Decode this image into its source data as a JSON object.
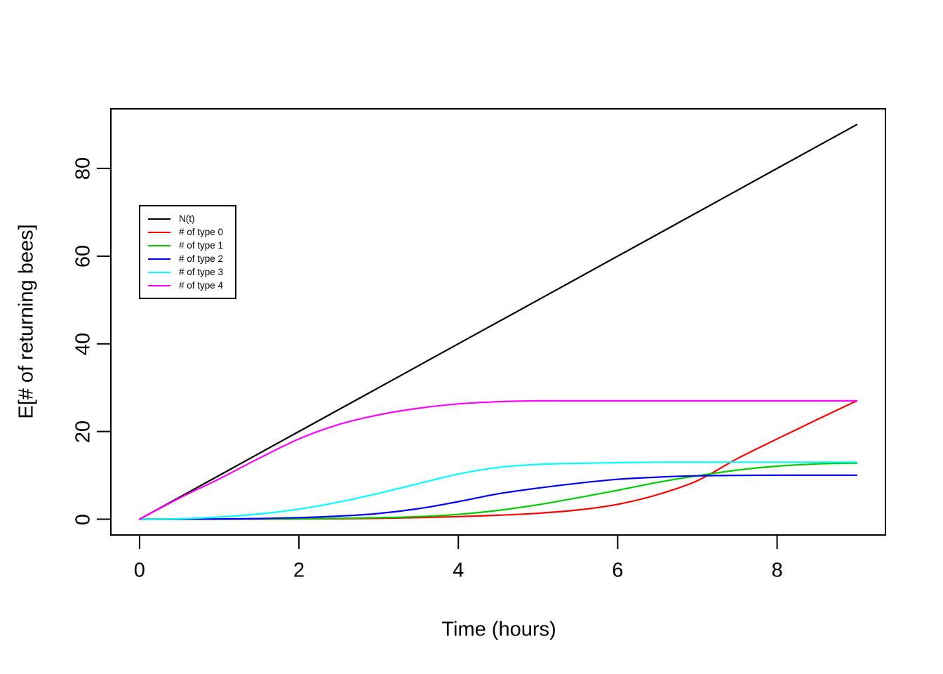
{
  "chart_data": {
    "type": "line",
    "title": "",
    "xlabel": "Time (hours)",
    "ylabel": "E[# of returning bees]",
    "xlim": [
      0,
      9
    ],
    "ylim": [
      0,
      90
    ],
    "x_ticks": [
      0,
      2,
      4,
      6,
      8
    ],
    "y_ticks": [
      0,
      20,
      40,
      60,
      80
    ],
    "grid": false,
    "background": "#FFFFFF",
    "axis_color": "#000000",
    "legend_position": "upper-left-inside",
    "x": [
      0,
      0.5,
      1,
      1.5,
      2,
      2.5,
      3,
      3.5,
      4,
      4.5,
      5,
      5.5,
      6,
      6.5,
      7,
      7.5,
      8,
      8.5,
      9
    ],
    "series": [
      {
        "name": "N(t)",
        "color": "#000000",
        "values": [
          0,
          5,
          10,
          15,
          20,
          25,
          30,
          35,
          40,
          45,
          50,
          55,
          60,
          65,
          70,
          75,
          80,
          85,
          90
        ]
      },
      {
        "name": "# of type 0",
        "color": "#FF0000",
        "values": [
          0,
          0,
          0,
          0.02,
          0.05,
          0.1,
          0.2,
          0.35,
          0.6,
          0.9,
          1.35,
          2.1,
          3.4,
          5.6,
          8.8,
          13.8,
          18.3,
          22.7,
          27
        ]
      },
      {
        "name": "# of type 1",
        "color": "#00CD00",
        "values": [
          0,
          0,
          0.02,
          0.05,
          0.1,
          0.2,
          0.35,
          0.6,
          1.1,
          2.0,
          3.3,
          4.9,
          6.6,
          8.4,
          9.9,
          11.2,
          12.1,
          12.6,
          12.8
        ]
      },
      {
        "name": "# of type 2",
        "color": "#0000FF",
        "values": [
          0,
          0.02,
          0.05,
          0.15,
          0.35,
          0.7,
          1.3,
          2.4,
          4.0,
          5.8,
          7.1,
          8.2,
          9.1,
          9.6,
          9.9,
          10.0,
          10.05,
          10.05,
          10.05
        ]
      },
      {
        "name": "# of type 3",
        "color": "#00FFFF",
        "values": [
          0,
          0.1,
          0.5,
          1.2,
          2.3,
          3.9,
          5.9,
          8.1,
          10.3,
          11.8,
          12.5,
          12.75,
          12.9,
          13.0,
          13.0,
          13.0,
          13.0,
          13.0,
          13.0
        ]
      },
      {
        "name": "# of type 4",
        "color": "#FF00FF",
        "values": [
          0,
          4.8,
          9.2,
          13.9,
          18.3,
          21.6,
          23.8,
          25.3,
          26.3,
          26.8,
          27,
          27,
          27,
          27,
          27,
          27,
          27,
          27,
          27
        ]
      }
    ]
  }
}
